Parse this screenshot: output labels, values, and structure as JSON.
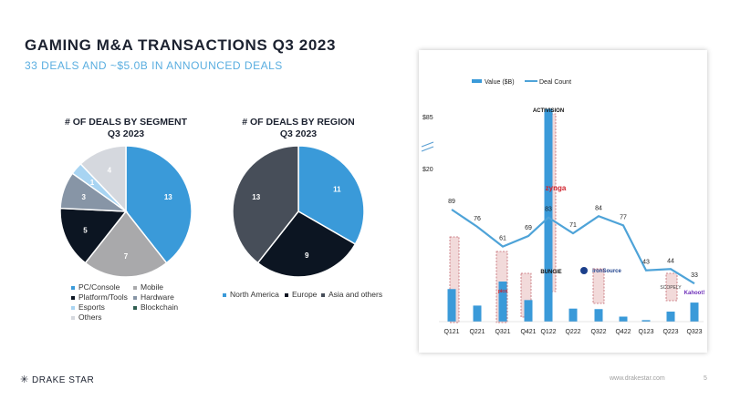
{
  "header": {
    "title": "GAMING M&A TRANSACTIONS Q3 2023",
    "subtitle": "33 DEALS AND ~$5.0B IN ANNOUNCED DEALS"
  },
  "chart_data": [
    {
      "type": "pie",
      "title": "# OF DEALS BY SEGMENT",
      "subtitle": "Q3 2023",
      "labels": [
        "PC/Console",
        "Mobile",
        "Platform/Tools",
        "Hardware",
        "Esports",
        "Blockchain",
        "Others"
      ],
      "values": [
        13,
        7,
        5,
        3,
        1,
        0,
        4
      ],
      "colors": [
        "#3a9ad9",
        "#a9a9ab",
        "#0c1522",
        "#8795a6",
        "#a8d4f2",
        "#2f5e50",
        "#d5d8de"
      ],
      "legend_position": "bottom"
    },
    {
      "type": "pie",
      "title": "# OF DEALS BY REGION",
      "subtitle": "Q3 2023",
      "labels": [
        "North America",
        "Europe",
        "Asia and others"
      ],
      "values": [
        11,
        9,
        13
      ],
      "colors": [
        "#3a9ad9",
        "#0c1522",
        "#474e59"
      ],
      "legend_position": "bottom"
    },
    {
      "type": "bar",
      "categories": [
        "Q121",
        "Q221",
        "Q321",
        "Q421",
        "Q122",
        "Q222",
        "Q322",
        "Q422",
        "Q123",
        "Q223",
        "Q323"
      ],
      "series": [
        {
          "name": "Value ($B)",
          "type": "bar",
          "color": "#3a9ad9",
          "values": [
            6.5,
            3.2,
            8.0,
            4.3,
            85.0,
            2.6,
            2.5,
            1.0,
            0.3,
            2.0,
            3.8
          ]
        },
        {
          "name": "Deal Count",
          "type": "line",
          "color": "#4ea3d8",
          "values": [
            89,
            76,
            61,
            69,
            83,
            71,
            84,
            77,
            43,
            44,
            33
          ]
        }
      ],
      "y_ticks": [
        "$85",
        "$20"
      ],
      "legend_position": "top",
      "annotations": [
        "ACTIVISION",
        "zynga",
        "BUNGIE",
        "ironSource",
        "SCOPELY",
        "Kahoot!",
        "pico"
      ]
    }
  ],
  "footer": {
    "logo_text": "DRAKE STAR",
    "url": "www.drakestar.com",
    "page": "5"
  }
}
